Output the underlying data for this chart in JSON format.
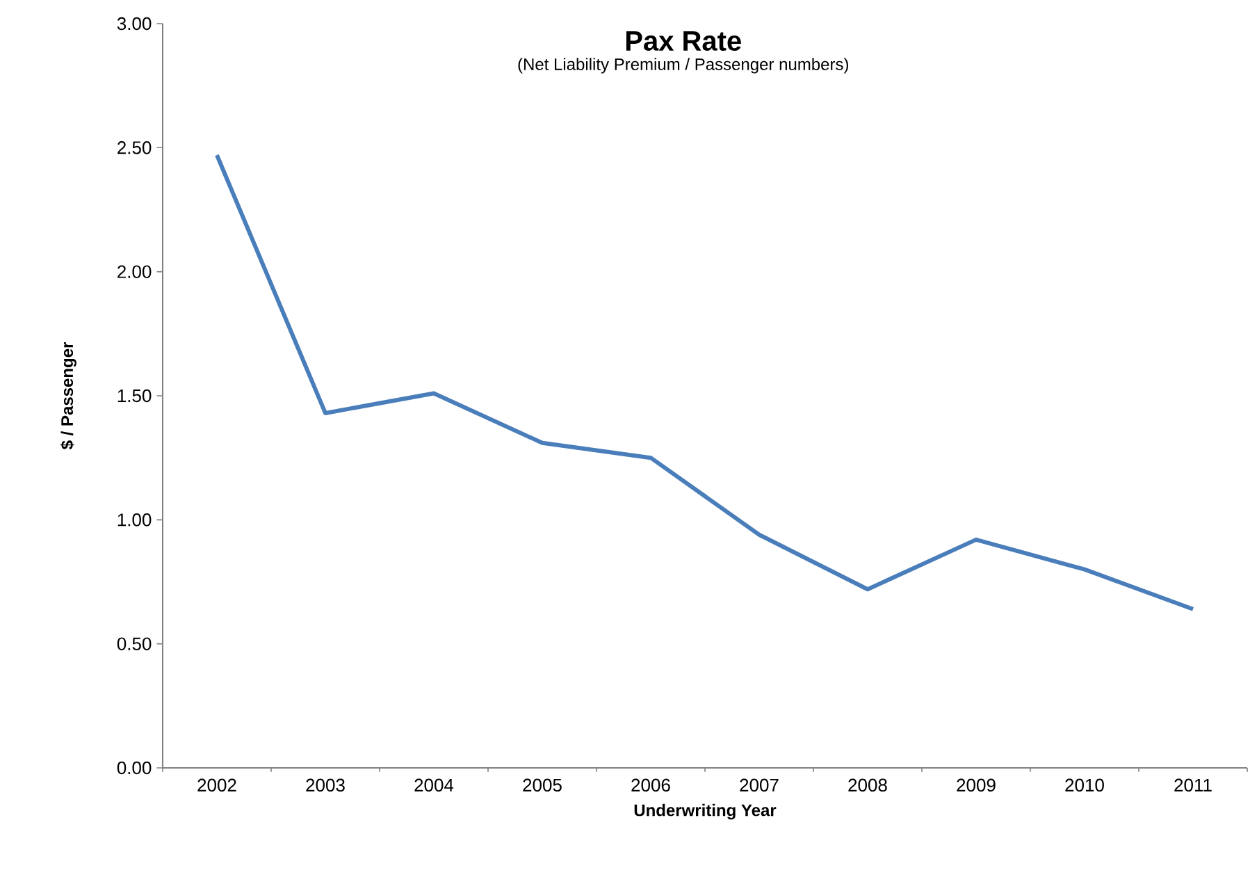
{
  "chart_data": {
    "type": "line",
    "title": "Pax Rate",
    "subtitle": "(Net Liability Premium / Passenger numbers)",
    "xlabel": "Underwriting Year",
    "ylabel": "$ / Passenger",
    "categories": [
      "2002",
      "2003",
      "2004",
      "2005",
      "2006",
      "2007",
      "2008",
      "2009",
      "2010",
      "2011"
    ],
    "values": [
      2.47,
      1.43,
      1.51,
      1.31,
      1.25,
      0.94,
      0.72,
      0.92,
      0.8,
      0.64
    ],
    "color": "#4a7ebb",
    "ylim": [
      0,
      3
    ],
    "yticks": [
      {
        "value": 0,
        "label": "0.00"
      },
      {
        "value": 0.5,
        "label": "0.50"
      },
      {
        "value": 1,
        "label": "1.00"
      },
      {
        "value": 1.5,
        "label": "1.50"
      },
      {
        "value": 2,
        "label": "2.00"
      },
      {
        "value": 2.5,
        "label": "2.50"
      },
      {
        "value": 3,
        "label": "3.00"
      }
    ],
    "grid": false,
    "marker": "none",
    "line_style": "solid"
  }
}
